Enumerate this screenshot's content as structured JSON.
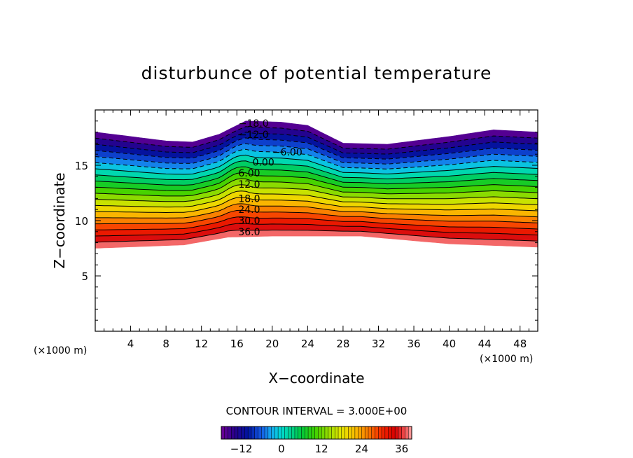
{
  "chart_data": {
    "type": "contour",
    "title": "disturbunce of potential temperature",
    "xlabel": "X−coordinate",
    "ylabel": "Z−coordinate",
    "x_unit_left": "(×1000 m)",
    "x_unit_right": "(×1000 m)",
    "xlim": [
      0,
      50
    ],
    "ylim": [
      0,
      20
    ],
    "x_ticks": [
      4,
      8,
      12,
      16,
      20,
      24,
      28,
      32,
      36,
      40,
      44,
      48
    ],
    "x_tick_labels": [
      "4",
      "8",
      "12",
      "16",
      "20",
      "24",
      "28",
      "32",
      "36",
      "40",
      "44",
      "48"
    ],
    "y_ticks": [
      5,
      10,
      15
    ],
    "y_tick_labels": [
      "5",
      "10",
      "15"
    ],
    "contour_interval_text": "CONTOUR INTERVAL = 3.000E+00",
    "contour_interval": 3.0,
    "value_range": [
      -18,
      39
    ],
    "field_bottom_profile": [
      [
        0,
        7.5
      ],
      [
        10,
        7.8
      ],
      [
        15,
        8.5
      ],
      [
        20,
        8.6
      ],
      [
        30,
        8.6
      ],
      [
        40,
        7.9
      ],
      [
        50,
        7.6
      ]
    ],
    "field_top_profile": [
      [
        0,
        18.0
      ],
      [
        8,
        17.2
      ],
      [
        11,
        17.1
      ],
      [
        14,
        17.8
      ],
      [
        17,
        19.0
      ],
      [
        21,
        18.9
      ],
      [
        24,
        18.6
      ],
      [
        28,
        17.0
      ],
      [
        33,
        16.9
      ],
      [
        40,
        17.6
      ],
      [
        45,
        18.2
      ],
      [
        50,
        18.0
      ]
    ],
    "contour_labels": [
      {
        "text": "−18.0",
        "x": 17.9,
        "z": 18.8
      },
      {
        "text": "−12.0",
        "x": 17.9,
        "z": 17.8
      },
      {
        "text": "−6.00",
        "x": 21.7,
        "z": 16.2
      },
      {
        "text": "0.00",
        "x": 19.0,
        "z": 15.3
      },
      {
        "text": "6.00",
        "x": 17.4,
        "z": 14.3
      },
      {
        "text": "12.0",
        "x": 17.4,
        "z": 13.3
      },
      {
        "text": "18.0",
        "x": 17.4,
        "z": 12.0
      },
      {
        "text": "24.0",
        "x": 17.4,
        "z": 11.0
      },
      {
        "text": "30.0",
        "x": 17.4,
        "z": 10.0
      },
      {
        "text": "36.0",
        "x": 17.4,
        "z": 9.0
      }
    ],
    "colorbar": {
      "min": -18,
      "max": 39,
      "ticks": [
        -12,
        0,
        12,
        24,
        36
      ],
      "tick_labels": [
        "−12",
        "0",
        "12",
        "24",
        "36"
      ]
    },
    "grid": false,
    "legend": "none"
  },
  "colors": {
    "background": "#ffffff",
    "axis": "#000000"
  }
}
